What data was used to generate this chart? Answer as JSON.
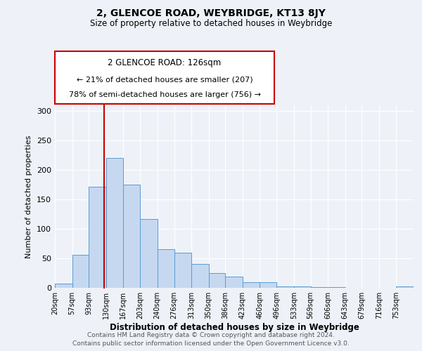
{
  "title1": "2, GLENCOE ROAD, WEYBRIDGE, KT13 8JY",
  "title2": "Size of property relative to detached houses in Weybridge",
  "xlabel": "Distribution of detached houses by size in Weybridge",
  "ylabel": "Number of detached properties",
  "bar_labels": [
    "20sqm",
    "57sqm",
    "93sqm",
    "130sqm",
    "167sqm",
    "203sqm",
    "240sqm",
    "276sqm",
    "313sqm",
    "350sqm",
    "386sqm",
    "423sqm",
    "460sqm",
    "496sqm",
    "533sqm",
    "569sqm",
    "606sqm",
    "643sqm",
    "679sqm",
    "716sqm",
    "753sqm"
  ],
  "bar_values": [
    7,
    56,
    172,
    220,
    175,
    117,
    65,
    60,
    40,
    25,
    19,
    10,
    9,
    2,
    2,
    1,
    1,
    0,
    0,
    0,
    2
  ],
  "bin_edges": [
    20,
    57,
    93,
    130,
    167,
    203,
    240,
    276,
    313,
    350,
    386,
    423,
    460,
    496,
    533,
    569,
    606,
    643,
    679,
    716,
    753,
    790
  ],
  "bar_color": "#c5d8f0",
  "bar_edge_color": "#5b9bd5",
  "vline_x": 126,
  "vline_color": "#cc0000",
  "annotation_line1": "2 GLENCOE ROAD: 126sqm",
  "annotation_line2": "← 21% of detached houses are smaller (207)",
  "annotation_line3": "78% of semi-detached houses are larger (756) →",
  "annotation_box_color": "#cc0000",
  "annotation_text_color": "#000000",
  "ylim": [
    0,
    310
  ],
  "yticks": [
    0,
    50,
    100,
    150,
    200,
    250,
    300
  ],
  "background_color": "#eef2f8",
  "grid_color": "#ffffff",
  "footer1": "Contains HM Land Registry data © Crown copyright and database right 2024.",
  "footer2": "Contains public sector information licensed under the Open Government Licence v3.0."
}
